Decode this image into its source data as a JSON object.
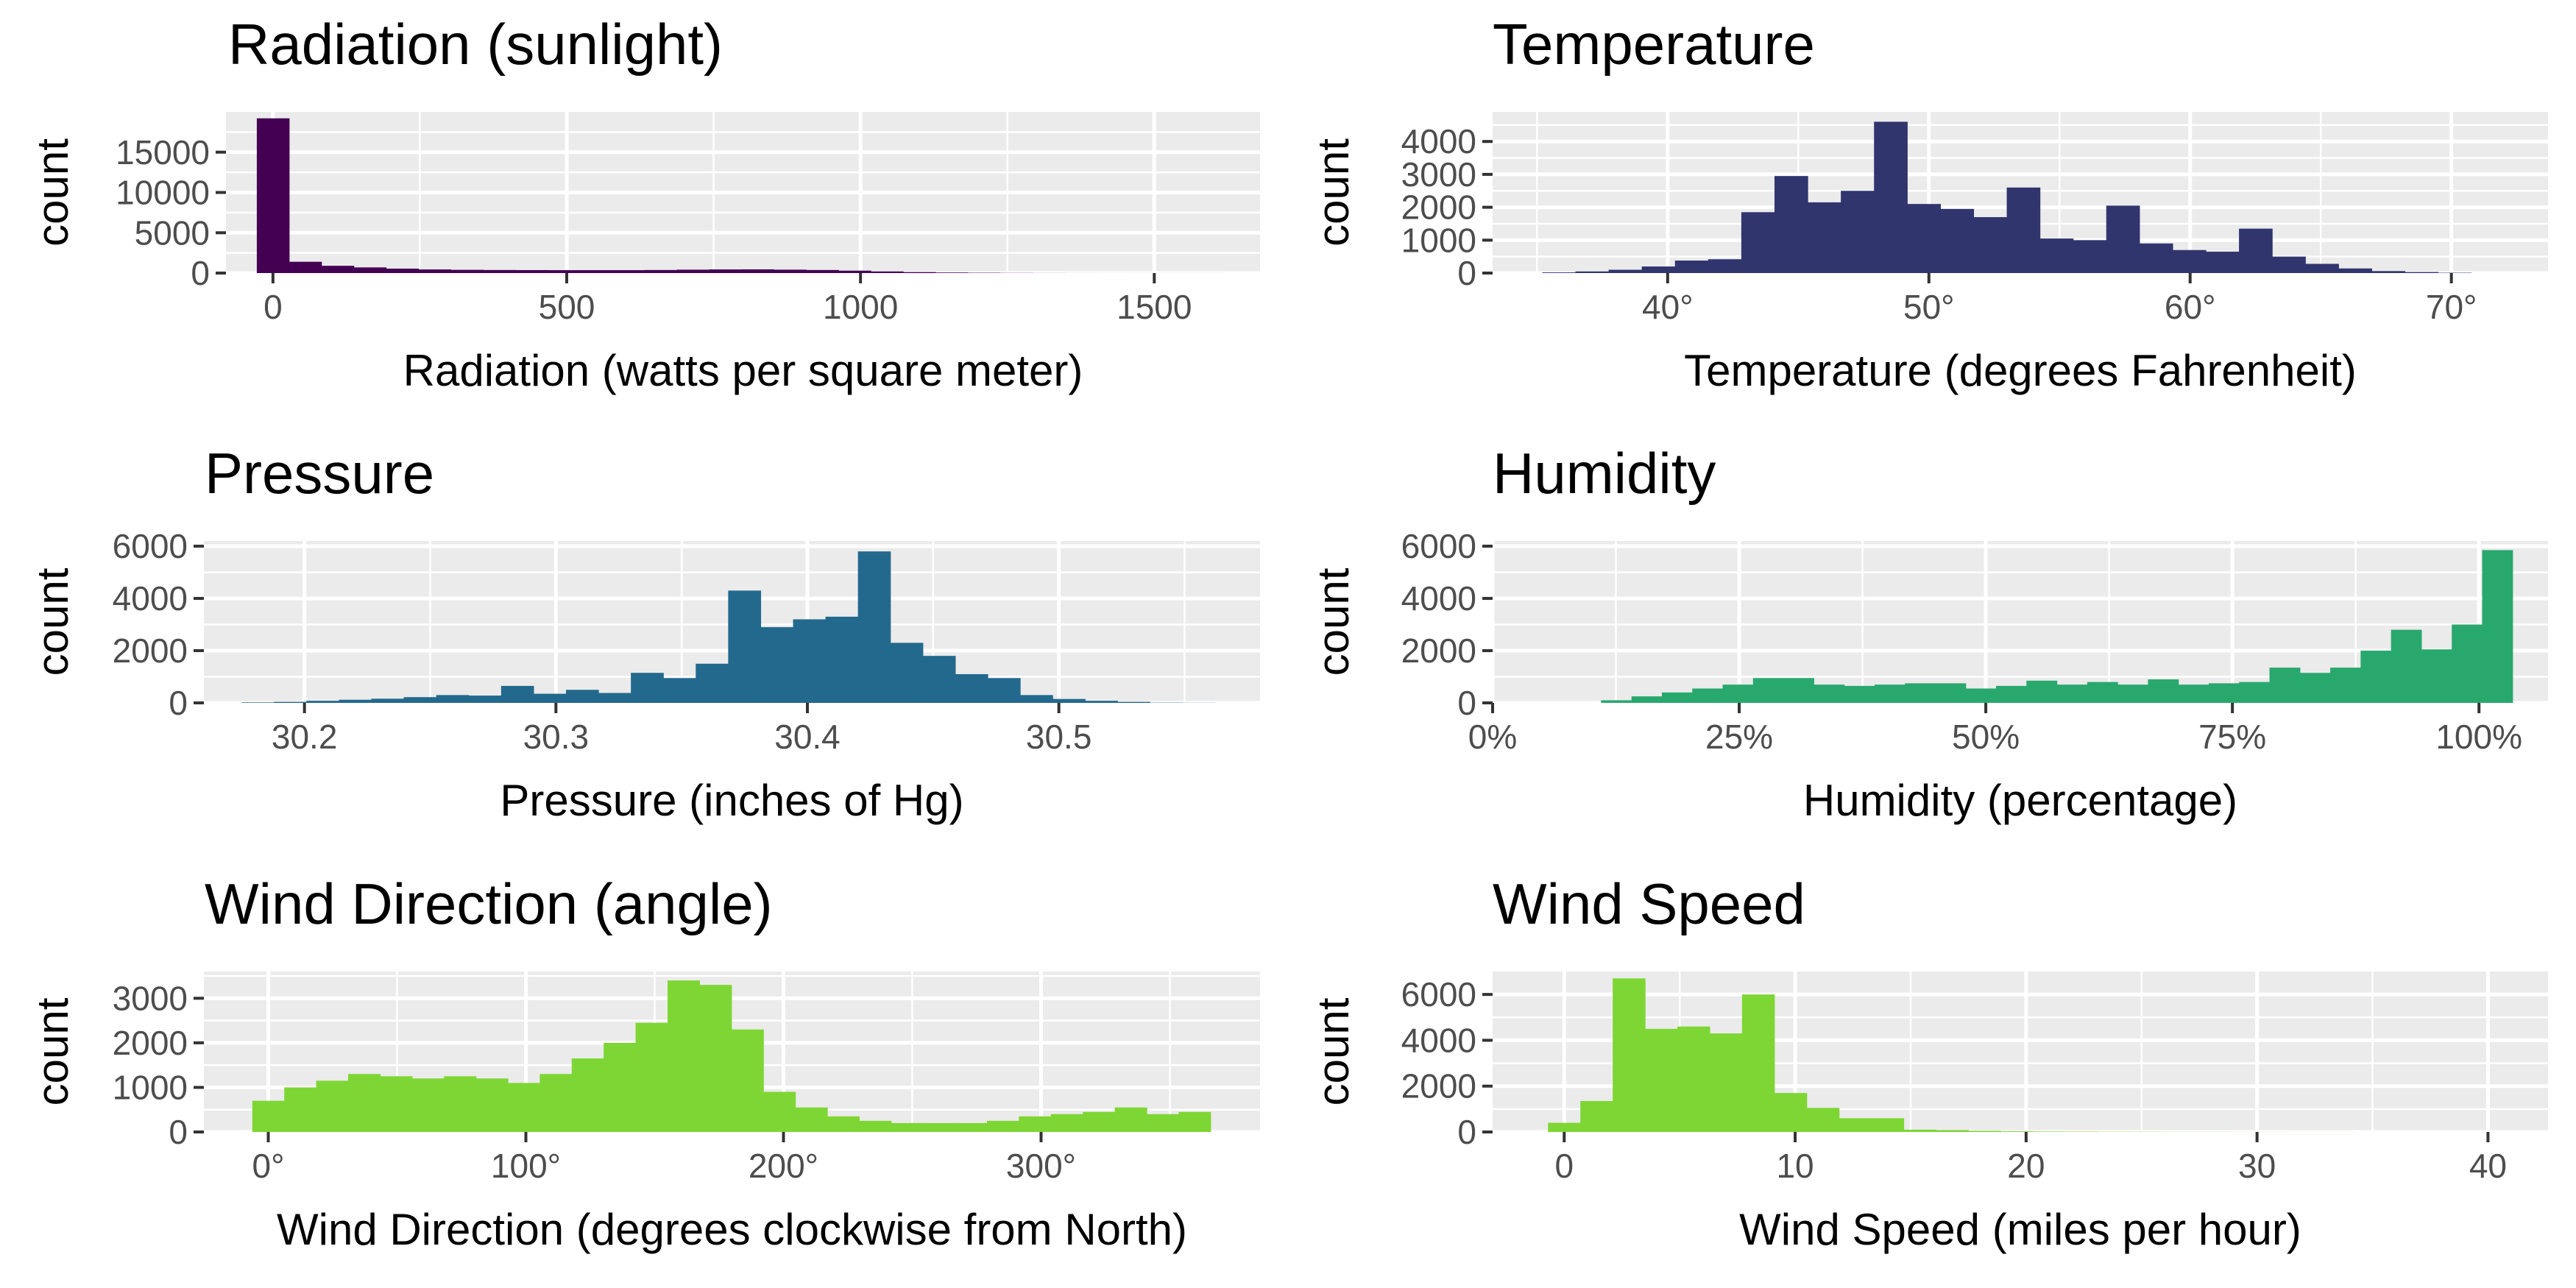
{
  "chart_data": [
    {
      "type": "bar",
      "title": "Radiation (sunlight)",
      "xlabel": "Radiation (watts per square meter)",
      "ylabel": "count",
      "xlim": [
        -80,
        1680
      ],
      "ylim": [
        0,
        20000
      ],
      "xticks": [
        0,
        500,
        1000,
        1500
      ],
      "xtick_labels": [
        "0",
        "500",
        "1000",
        "1500"
      ],
      "yticks": [
        0,
        5000,
        10000,
        15000
      ],
      "ytick_labels": [
        "0",
        "5000",
        "10000",
        "15000"
      ],
      "grid": true,
      "color": "#440154",
      "bins": {
        "start": -27.5,
        "width": 55,
        "counts": [
          19200,
          1400,
          900,
          700,
          550,
          450,
          400,
          380,
          370,
          360,
          360,
          360,
          380,
          420,
          450,
          460,
          420,
          380,
          300,
          200,
          120,
          70,
          40,
          20,
          10,
          5,
          3,
          2,
          2,
          2
        ]
      }
    },
    {
      "type": "bar",
      "title": "Temperature",
      "xlabel": "Temperature (degrees Fahrenheit)",
      "ylabel": "count",
      "xlim": [
        33.3,
        73.7
      ],
      "ylim": [
        0,
        4900
      ],
      "xticks": [
        40,
        50,
        60,
        70
      ],
      "xtick_labels": [
        "40°",
        "50°",
        "60°",
        "70°"
      ],
      "yticks": [
        0,
        1000,
        2000,
        3000,
        4000
      ],
      "ytick_labels": [
        "0",
        "1000",
        "2000",
        "3000",
        "4000"
      ],
      "grid": true,
      "color": "#31356e",
      "bins": {
        "start": 35.2,
        "width": 1.27,
        "counts": [
          20,
          50,
          100,
          200,
          380,
          420,
          1850,
          2950,
          2150,
          2500,
          4600,
          2100,
          1950,
          1700,
          2600,
          1050,
          1000,
          2050,
          900,
          700,
          650,
          1350,
          500,
          280,
          140,
          60,
          30,
          10
        ]
      }
    },
    {
      "type": "bar",
      "title": "Pressure",
      "xlabel": "Pressure (inches of Hg)",
      "ylabel": "count",
      "xlim": [
        30.16,
        30.58
      ],
      "ylim": [
        0,
        6200
      ],
      "xticks": [
        30.2,
        30.3,
        30.4,
        30.5
      ],
      "xtick_labels": [
        "30.2",
        "30.3",
        "30.4",
        "30.5"
      ],
      "yticks": [
        0,
        2000,
        4000,
        6000
      ],
      "ytick_labels": [
        "0",
        "2000",
        "4000",
        "6000"
      ],
      "grid": true,
      "color": "#23698e",
      "bins": {
        "start": 30.175,
        "width": 0.0129,
        "counts": [
          20,
          40,
          80,
          120,
          160,
          220,
          300,
          280,
          650,
          350,
          500,
          380,
          1150,
          950,
          1500,
          4300,
          2900,
          3200,
          3300,
          5800,
          2300,
          1800,
          1100,
          950,
          300,
          150,
          80,
          40,
          10,
          5
        ]
      }
    },
    {
      "type": "bar",
      "title": "Humidity",
      "xlabel": "Humidity (percentage)",
      "ylabel": "count",
      "xlim": [
        0,
        1.07
      ],
      "ylim": [
        0,
        6200
      ],
      "xticks": [
        0,
        0.25,
        0.5,
        0.75,
        1.0
      ],
      "xtick_labels": [
        "0%",
        "25%",
        "50%",
        "75%",
        "100%"
      ],
      "yticks": [
        0,
        2000,
        4000,
        6000
      ],
      "ytick_labels": [
        "0",
        "2000",
        "4000",
        "6000"
      ],
      "grid": true,
      "color": "#29a86e",
      "bins": {
        "start": 0.11,
        "width": 0.0308,
        "counts": [
          100,
          250,
          400,
          550,
          700,
          950,
          950,
          700,
          650,
          700,
          750,
          750,
          550,
          650,
          850,
          700,
          800,
          700,
          900,
          700,
          750,
          800,
          1350,
          1150,
          1350,
          2000,
          2800,
          2050,
          3000,
          5850
        ]
      }
    },
    {
      "type": "bar",
      "title": "Wind Direction (angle)",
      "xlabel": "Wind Direction (degrees clockwise from North)",
      "ylabel": "count",
      "xlim": [
        -25,
        385
      ],
      "ylim": [
        0,
        3600
      ],
      "xticks": [
        0,
        100,
        200,
        300
      ],
      "xtick_labels": [
        "0°",
        "100°",
        "200°",
        "300°"
      ],
      "yticks": [
        0,
        1000,
        2000,
        3000
      ],
      "ytick_labels": [
        "0",
        "1000",
        "2000",
        "3000"
      ],
      "grid": true,
      "color": "#7ed634",
      "bins": {
        "start": -6.2,
        "width": 12.4,
        "counts": [
          700,
          1000,
          1150,
          1300,
          1250,
          1200,
          1250,
          1200,
          1100,
          1300,
          1650,
          2000,
          2450,
          3400,
          3300,
          2300,
          900,
          550,
          350,
          250,
          200,
          200,
          200,
          250,
          350,
          400,
          450,
          550,
          400,
          450
        ]
      }
    },
    {
      "type": "bar",
      "title": "Wind Speed",
      "xlabel": "Wind Speed (miles per hour)",
      "ylabel": "count",
      "xlim": [
        -3.1,
        42.6
      ],
      "ylim": [
        0,
        7000
      ],
      "xticks": [
        0,
        10,
        20,
        30,
        40
      ],
      "xtick_labels": [
        "0",
        "10",
        "20",
        "30",
        "40"
      ],
      "yticks": [
        0,
        2000,
        4000,
        6000
      ],
      "ytick_labels": [
        "0",
        "2000",
        "4000",
        "6000"
      ],
      "grid": true,
      "color": "#7ed634",
      "bins": {
        "start": -0.7,
        "width": 1.4,
        "counts": [
          400,
          1350,
          6700,
          4500,
          4600,
          4300,
          6000,
          1700,
          1050,
          600,
          600,
          100,
          80,
          50,
          30,
          20,
          15,
          10,
          8,
          5,
          5,
          3,
          3,
          2,
          2
        ]
      }
    }
  ]
}
